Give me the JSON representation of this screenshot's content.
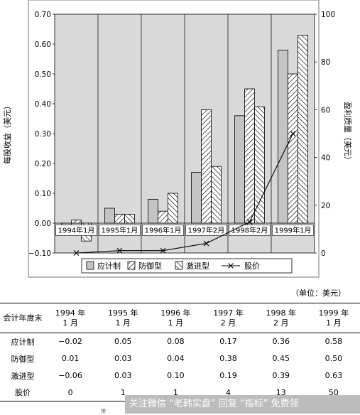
{
  "chart_data": {
    "type": "bar",
    "categories": [
      "1994年1月",
      "1995年1月",
      "1996年1月",
      "1997年2月",
      "1998年2月",
      "1999年1月"
    ],
    "series": [
      {
        "name": "应计制",
        "kind": "bar",
        "pattern": "gray",
        "values": [
          -0.02,
          0.05,
          0.08,
          0.17,
          0.36,
          0.58
        ]
      },
      {
        "name": "防御型",
        "kind": "bar",
        "pattern": "hatch-forward",
        "values": [
          0.01,
          0.03,
          0.04,
          0.38,
          0.45,
          0.5
        ]
      },
      {
        "name": "激进型",
        "kind": "bar",
        "pattern": "hatch-backward",
        "values": [
          -0.06,
          0.03,
          0.1,
          0.19,
          0.39,
          0.63
        ]
      },
      {
        "name": "股价",
        "kind": "line",
        "axis": "right",
        "marker": "x",
        "values": [
          0,
          1,
          1,
          4,
          13,
          50
        ]
      }
    ],
    "ylabel_left": "每股收益（美元）",
    "ylabel_right": "盈利质量（美元）",
    "ylim_left": [
      -0.1,
      0.7
    ],
    "yticks_left": [
      "−0.10",
      "0.00",
      "0.10",
      "0.20",
      "0.30",
      "0.40",
      "0.50",
      "0.60",
      "0.70"
    ],
    "ylim_right": [
      0,
      100
    ],
    "yticks_right": [
      "0",
      "20",
      "40",
      "60",
      "80",
      "100"
    ],
    "grid": "vertical lines between categories",
    "legend_position": "bottom-inside",
    "colors": {
      "plot_bg": "#d9d9d9",
      "bar_gray": "#c4c4c4",
      "line": "#000000"
    }
  },
  "unit_note": "（单位：美元）",
  "table": {
    "header": [
      "会计年度末",
      "1994 年\n1 月",
      "1995 年\n1 月",
      "1996 年\n1 月",
      "1997 年\n2 月",
      "1998 年\n2 月",
      "1999 年\n1 月"
    ],
    "rows": [
      [
        "应计制",
        "−0.02",
        "0.05",
        "0.08",
        "0.17",
        "0.36",
        "0.58"
      ],
      [
        "防御型",
        "0.01",
        "0.03",
        "0.04",
        "0.38",
        "0.45",
        "0.50"
      ],
      [
        "激进型",
        "−0.06",
        "0.03",
        "0.10",
        "0.19",
        "0.39",
        "0.63"
      ],
      [
        "股价",
        "0",
        "1",
        "1",
        "4",
        "13",
        "50"
      ]
    ]
  },
  "watermark": "关注微信 “老韩实盘” 回复 “指标” 免费领",
  "footer_fragment": "带"
}
